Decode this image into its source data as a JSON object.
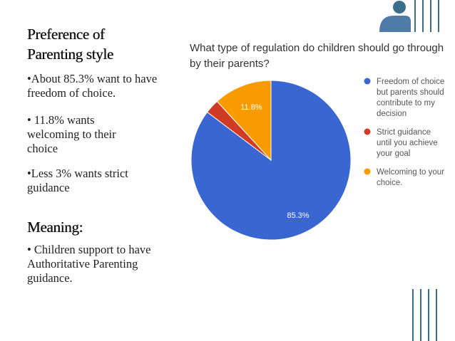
{
  "slide": {
    "heading1": "Preference of Parenting style",
    "bullet1": "•About 85.3% want to have freedom of choice.",
    "bullet2": "• 11.8% wants welcoming to their choice",
    "bullet3": "•Less 3% wants strict guidance",
    "heading2": "Meaning:",
    "bullet4": "• Children support to have Authoritative Parenting guidance."
  },
  "colors": {
    "freedom": "#3a66d1",
    "strict": "#d03b26",
    "welcoming": "#f79b00",
    "accent": "#3a6e8c"
  },
  "chart_data": {
    "type": "pie",
    "title": "What type of regulation do children should go through by their parents?",
    "slices": [
      {
        "label": "Freedom of choice but parents should contribute to my decision",
        "legend_lines": [
          "Freedom of choice",
          "but parents should",
          "contribute to my",
          "decision"
        ],
        "value": 85.3,
        "data_label": "85.3%",
        "color": "#3a66d1"
      },
      {
        "label": "Strict guidance until you achieve your goal",
        "legend_lines": [
          "Strict guidance",
          "until you achieve",
          "your goal"
        ],
        "value": 2.9,
        "data_label": "",
        "color": "#d03b26"
      },
      {
        "label": "Welcoming to your choice.",
        "legend_lines": [
          "Welcoming to your",
          "choice."
        ],
        "value": 11.8,
        "data_label": "11.8%",
        "color": "#f79b00"
      }
    ],
    "legend_position": "right"
  }
}
